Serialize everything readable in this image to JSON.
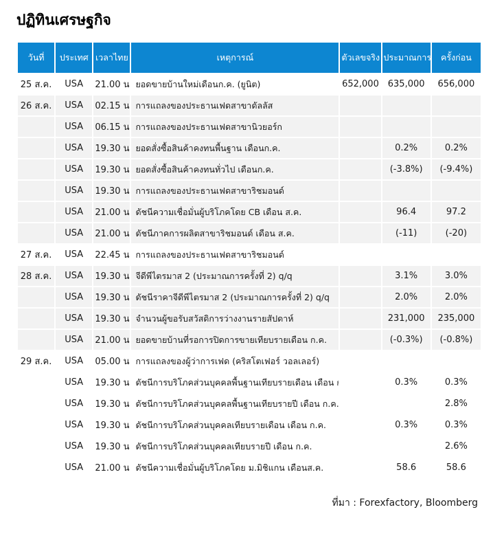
{
  "page": {
    "title": "ปฏิทินเศรษฐกิจ",
    "source_note": "ที่มา : Forexfactory, Bloomberg"
  },
  "colors": {
    "header_blue": "#0d86d1",
    "row_gray": "#f2f2f2",
    "header_text": "#ffffff",
    "body_text": "#1a1a1a"
  },
  "table": {
    "headers": [
      {
        "key": "date",
        "label": "วันที่"
      },
      {
        "key": "country",
        "label": "ประเทศ"
      },
      {
        "key": "time",
        "label": "เวลาไทย"
      },
      {
        "key": "event",
        "label": "เหตุการณ์"
      },
      {
        "key": "actual",
        "label": "ตัวเลขจริง"
      },
      {
        "key": "forecast",
        "label": "ประมาณการ"
      },
      {
        "key": "previous",
        "label": "ครั้งก่อน"
      }
    ],
    "rows": [
      {
        "date": "25 ส.ค.",
        "country": "USA",
        "time": "21.00 น.",
        "event": "ยอดขายบ้านใหม่เดือนก.ค. (ยูนิต)",
        "actual": "652,000",
        "forecast": "635,000",
        "previous": "656,000",
        "shaded": false
      },
      {
        "date": "26 ส.ค.",
        "country": "USA",
        "time": "02.15 น.",
        "event": "การแถลงของประธานเฟดสาขาดัลลัส",
        "actual": "",
        "forecast": "",
        "previous": "",
        "shaded": true
      },
      {
        "date": "",
        "country": "USA",
        "time": "06.15 น.",
        "event": "การแถลงของประธานเฟดสาขานิวยอร์ก",
        "actual": "",
        "forecast": "",
        "previous": "",
        "shaded": true
      },
      {
        "date": "",
        "country": "USA",
        "time": "19.30 น.",
        "event": "ยอดสั่งซื้อสินค้าคงทนพื้นฐาน เดือนก.ค.",
        "actual": "",
        "forecast": "0.2%",
        "previous": "0.2%",
        "shaded": true
      },
      {
        "date": "",
        "country": "USA",
        "time": "19.30 น.",
        "event": "ยอดสั่งซื้อสินค้าคงทนทั่วไป เดือนก.ค.",
        "actual": "",
        "forecast": "(-3.8%)",
        "previous": "(-9.4%)",
        "shaded": true
      },
      {
        "date": "",
        "country": "USA",
        "time": "19.30 น.",
        "event": "การแถลงของประธานเฟดสาขาริชมอนด์",
        "actual": "",
        "forecast": "",
        "previous": "",
        "shaded": true
      },
      {
        "date": "",
        "country": "USA",
        "time": "21.00 น.",
        "event": "ดัชนีความเชื่อมั่นผู้บริโภคโดย CB เดือน ส.ค.",
        "actual": "",
        "forecast": "96.4",
        "previous": "97.2",
        "shaded": true
      },
      {
        "date": "",
        "country": "USA",
        "time": "21.00 น.",
        "event": "ดัชนีภาคการผลิตสาขาริชมอนด์ เดือน ส.ค.",
        "actual": "",
        "forecast": "(-11)",
        "previous": "(-20)",
        "shaded": true
      },
      {
        "date": "27 ส.ค.",
        "country": "USA",
        "time": "22.45 น.",
        "event": "การแถลงของประธานเฟดสาขาริชมอนด์",
        "actual": "",
        "forecast": "",
        "previous": "",
        "shaded": false
      },
      {
        "date": "28 ส.ค.",
        "country": "USA",
        "time": "19.30 น.",
        "event": "จีดีพีไตรมาส 2 (ประมาณการครั้งที่ 2) q/q",
        "actual": "",
        "forecast": "3.1%",
        "previous": "3.0%",
        "shaded": true
      },
      {
        "date": "",
        "country": "USA",
        "time": "19.30 น.",
        "event": "ดัชนีราคาจีดีพีไตรมาส 2 (ประมาณการครั้งที่ 2) q/q",
        "actual": "",
        "forecast": "2.0%",
        "previous": "2.0%",
        "shaded": true
      },
      {
        "date": "",
        "country": "USA",
        "time": "19.30 น.",
        "event": "จำนวนผู้ขอรับสวัสดิการว่างงานรายสัปดาห์",
        "actual": "",
        "forecast": "231,000",
        "previous": "235,000",
        "shaded": true
      },
      {
        "date": "",
        "country": "USA",
        "time": "21.00 น.",
        "event": "ยอดขายบ้านที่รอการปิดการขายเทียบรายเดือน ก.ค.",
        "actual": "",
        "forecast": "(-0.3%)",
        "previous": "(-0.8%)",
        "shaded": true
      },
      {
        "date": "29 ส.ค.",
        "country": "USA",
        "time": "05.00 น.",
        "event": "การแถลงของผู้ว่าการเฟด (คริสโตเฟอร์ วอลเลอร์)",
        "actual": "",
        "forecast": "",
        "previous": "",
        "shaded": false
      },
      {
        "date": "",
        "country": "USA",
        "time": "19.30 น.",
        "event": "ดัชนีการบริโภคส่วนบุคคลพื้นฐานเทียบรายเดือน เดือน ก.ค.",
        "actual": "",
        "forecast": "0.3%",
        "previous": "0.3%",
        "shaded": false
      },
      {
        "date": "",
        "country": "USA",
        "time": "19.30 น.",
        "event": "ดัชนีการบริโภคส่วนบุคคลพื้นฐานเทียบรายปี เดือน ก.ค.",
        "actual": "",
        "forecast": "",
        "previous": "2.8%",
        "shaded": false
      },
      {
        "date": "",
        "country": "USA",
        "time": "19.30 น.",
        "event": "ดัชนีการบริโภคส่วนบุคคลเทียบรายเดือน เดือน ก.ค.",
        "actual": "",
        "forecast": "0.3%",
        "previous": "0.3%",
        "shaded": false
      },
      {
        "date": "",
        "country": "USA",
        "time": "19.30 น.",
        "event": "ดัชนีการบริโภคส่วนบุคคลเทียบรายปี เดือน ก.ค.",
        "actual": "",
        "forecast": "",
        "previous": "2.6%",
        "shaded": false
      },
      {
        "date": "",
        "country": "USA",
        "time": "21.00 น.",
        "event": "ดัชนีความเชื่อมั่นผู้บริโภคโดย ม.มิชิแกน เดือนส.ค.",
        "actual": "",
        "forecast": "58.6",
        "previous": "58.6",
        "shaded": false
      }
    ]
  }
}
